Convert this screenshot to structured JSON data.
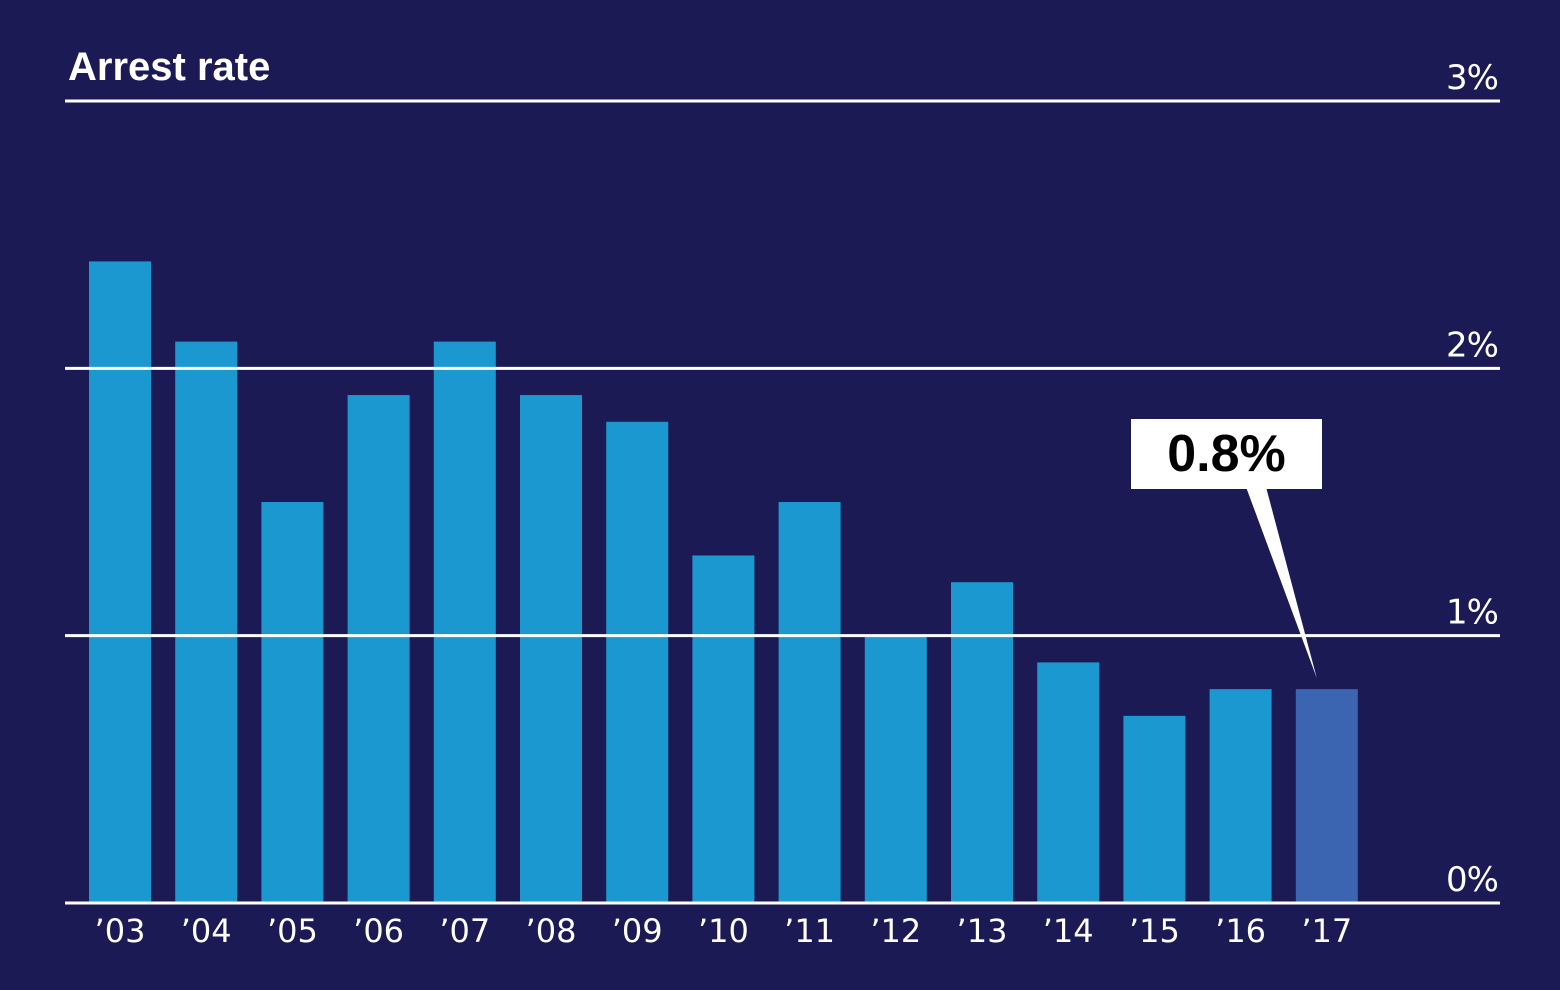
{
  "chart_data": {
    "type": "bar",
    "title": "Arrest rate",
    "categories": [
      "’03",
      "’04",
      "’05",
      "’06",
      "’07",
      "’08",
      "’09",
      "’10",
      "’11",
      "’12",
      "’13",
      "’14",
      "’15",
      "’16",
      "’17"
    ],
    "values": [
      2.4,
      2.1,
      1.5,
      1.9,
      2.1,
      1.9,
      1.8,
      1.3,
      1.5,
      1.0,
      1.2,
      0.9,
      0.7,
      0.8,
      0.8
    ],
    "unit": "%",
    "ylim": [
      0,
      3
    ],
    "yticks": [
      0,
      1,
      2,
      3
    ],
    "ytick_labels": [
      "0%",
      "1%",
      "2%",
      "3%"
    ],
    "grid": true,
    "highlight_index": 14,
    "annotation": {
      "text": "0.8%",
      "category": "’17"
    },
    "xlabel": "",
    "ylabel": ""
  },
  "colors": {
    "background": "#1c1a55",
    "bar": "#1b98cf",
    "highlight_bar": "#3c65b1",
    "gridline": "#ffffff",
    "text": "#ffffff",
    "callout_box": "#ffffff",
    "callout_text": "#000000"
  }
}
